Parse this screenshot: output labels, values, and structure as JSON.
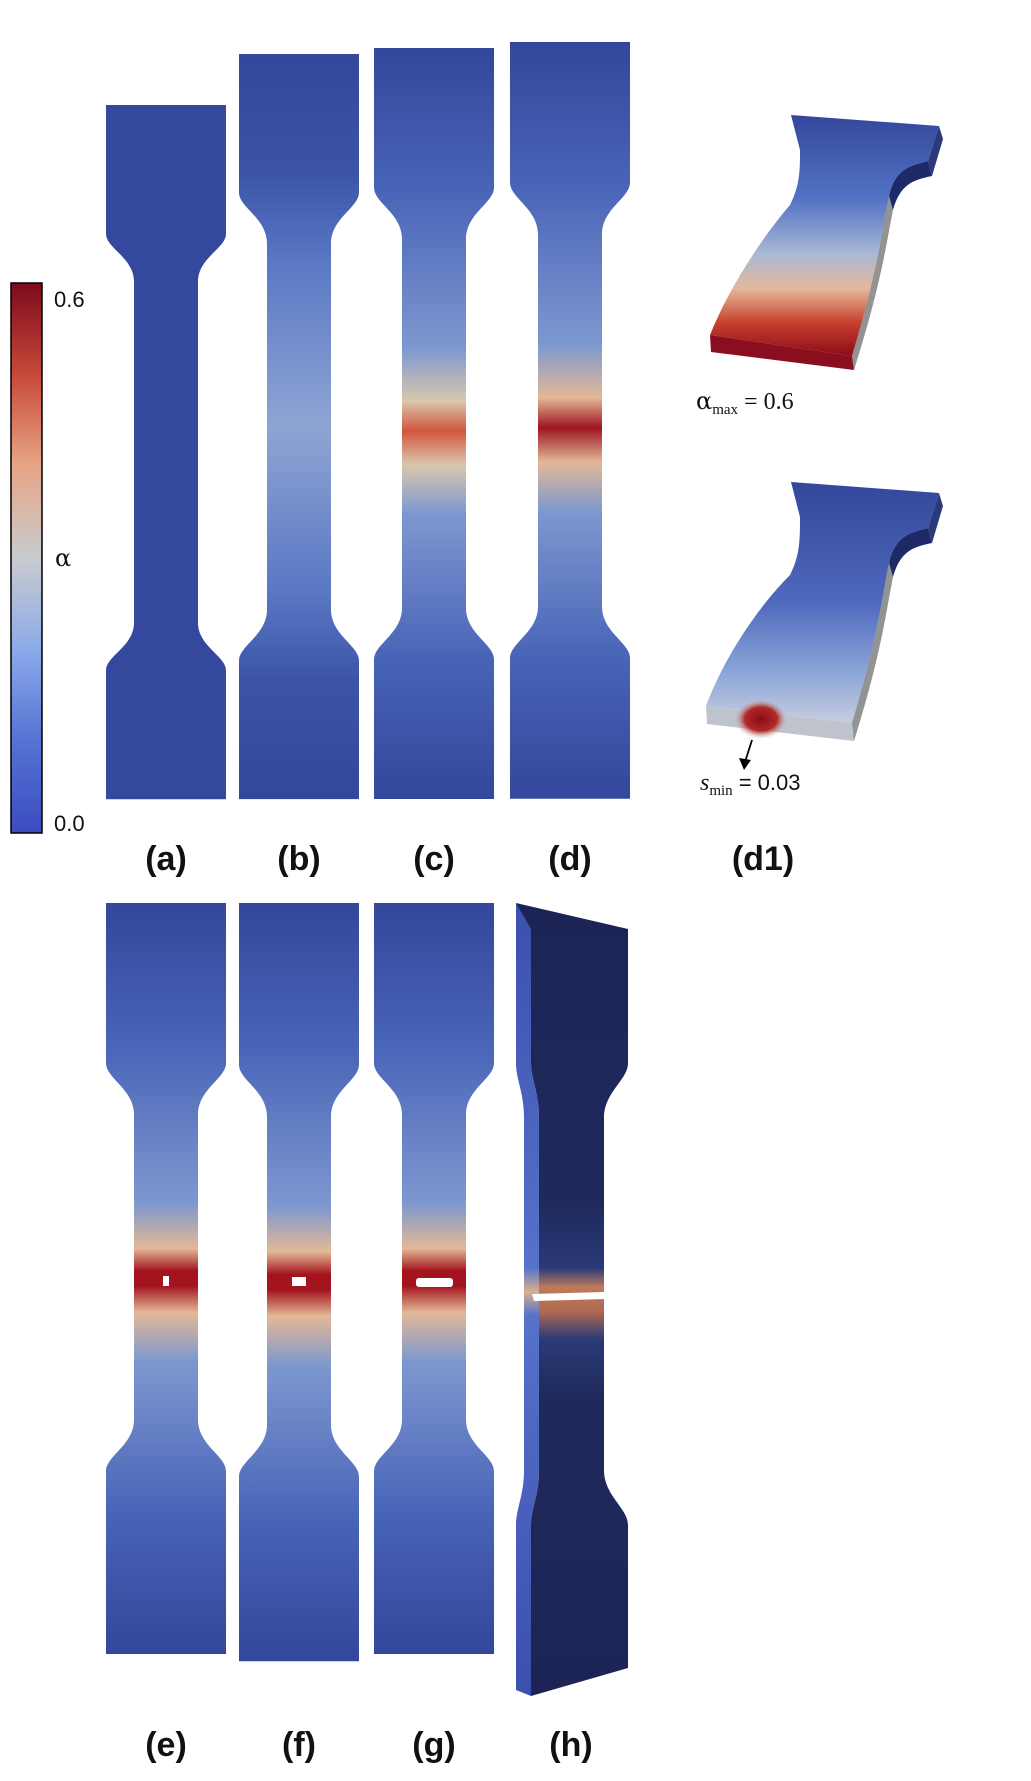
{
  "colorbar": {
    "max_label": "0.6",
    "min_label": "0.0",
    "variable": "α",
    "max_value": 0.6,
    "min_value": 0.0,
    "colors": [
      "#3b4cc0",
      "#6f93e0",
      "#aac7f8",
      "#dddcdb",
      "#f4b497",
      "#d65244",
      "#8b0a1a"
    ]
  },
  "panels": [
    {
      "id": "a",
      "label": "(a)"
    },
    {
      "id": "b",
      "label": "(b)"
    },
    {
      "id": "c",
      "label": "(c)"
    },
    {
      "id": "d",
      "label": "(d)"
    },
    {
      "id": "d1",
      "label": "(d1)"
    },
    {
      "id": "e",
      "label": "(e)"
    },
    {
      "id": "f",
      "label": "(f)"
    },
    {
      "id": "g",
      "label": "(g)"
    },
    {
      "id": "h",
      "label": "(h)"
    }
  ],
  "annotations": {
    "alpha_max": {
      "symbol": "α",
      "subscript": "max",
      "value": "= 0.6"
    },
    "s_min": {
      "symbol": "s",
      "subscript": "min",
      "value": "= 0.03"
    }
  }
}
